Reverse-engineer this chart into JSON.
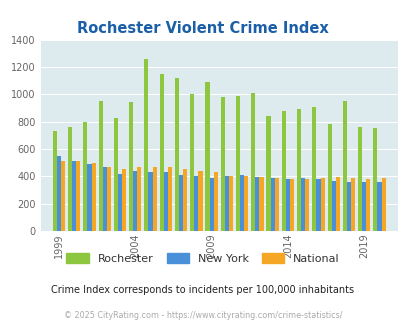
{
  "title": "Rochester Violent Crime Index",
  "years": [
    1999,
    2000,
    2001,
    2002,
    2003,
    2004,
    2005,
    2006,
    2007,
    2008,
    2009,
    2010,
    2011,
    2012,
    2013,
    2014,
    2015,
    2016,
    2017,
    2018,
    2019,
    2020
  ],
  "rochester": [
    730,
    760,
    800,
    950,
    830,
    940,
    1260,
    1150,
    1120,
    1000,
    1090,
    980,
    990,
    1010,
    840,
    880,
    890,
    910,
    780,
    950,
    760,
    755
  ],
  "new_york": [
    550,
    510,
    490,
    470,
    420,
    440,
    430,
    430,
    410,
    400,
    390,
    400,
    410,
    395,
    390,
    380,
    385,
    380,
    365,
    360,
    355,
    360
  ],
  "national": [
    510,
    510,
    495,
    470,
    455,
    465,
    470,
    465,
    450,
    440,
    435,
    405,
    400,
    395,
    385,
    380,
    380,
    390,
    395,
    390,
    380,
    385
  ],
  "rochester_color": "#8dc63f",
  "new_york_color": "#4a90d9",
  "national_color": "#f5a623",
  "background_color": "#ddeaee",
  "ylim": [
    0,
    1400
  ],
  "yticks": [
    0,
    200,
    400,
    600,
    800,
    1000,
    1200,
    1400
  ],
  "x_tick_labels": [
    "1999",
    "2004",
    "2009",
    "2014",
    "2019"
  ],
  "x_tick_positions": [
    1999,
    2004,
    2009,
    2014,
    2019
  ],
  "grid_color": "#ffffff",
  "bar_width": 0.27,
  "legend_labels": [
    "Rochester",
    "New York",
    "National"
  ],
  "subtitle": "Crime Index corresponds to incidents per 100,000 inhabitants",
  "footer": "© 2025 CityRating.com - https://www.cityrating.com/crime-statistics/",
  "title_color": "#1a5fa8",
  "subtitle_color": "#222222",
  "footer_color": "#aaaaaa",
  "axis_text_color": "#666666"
}
